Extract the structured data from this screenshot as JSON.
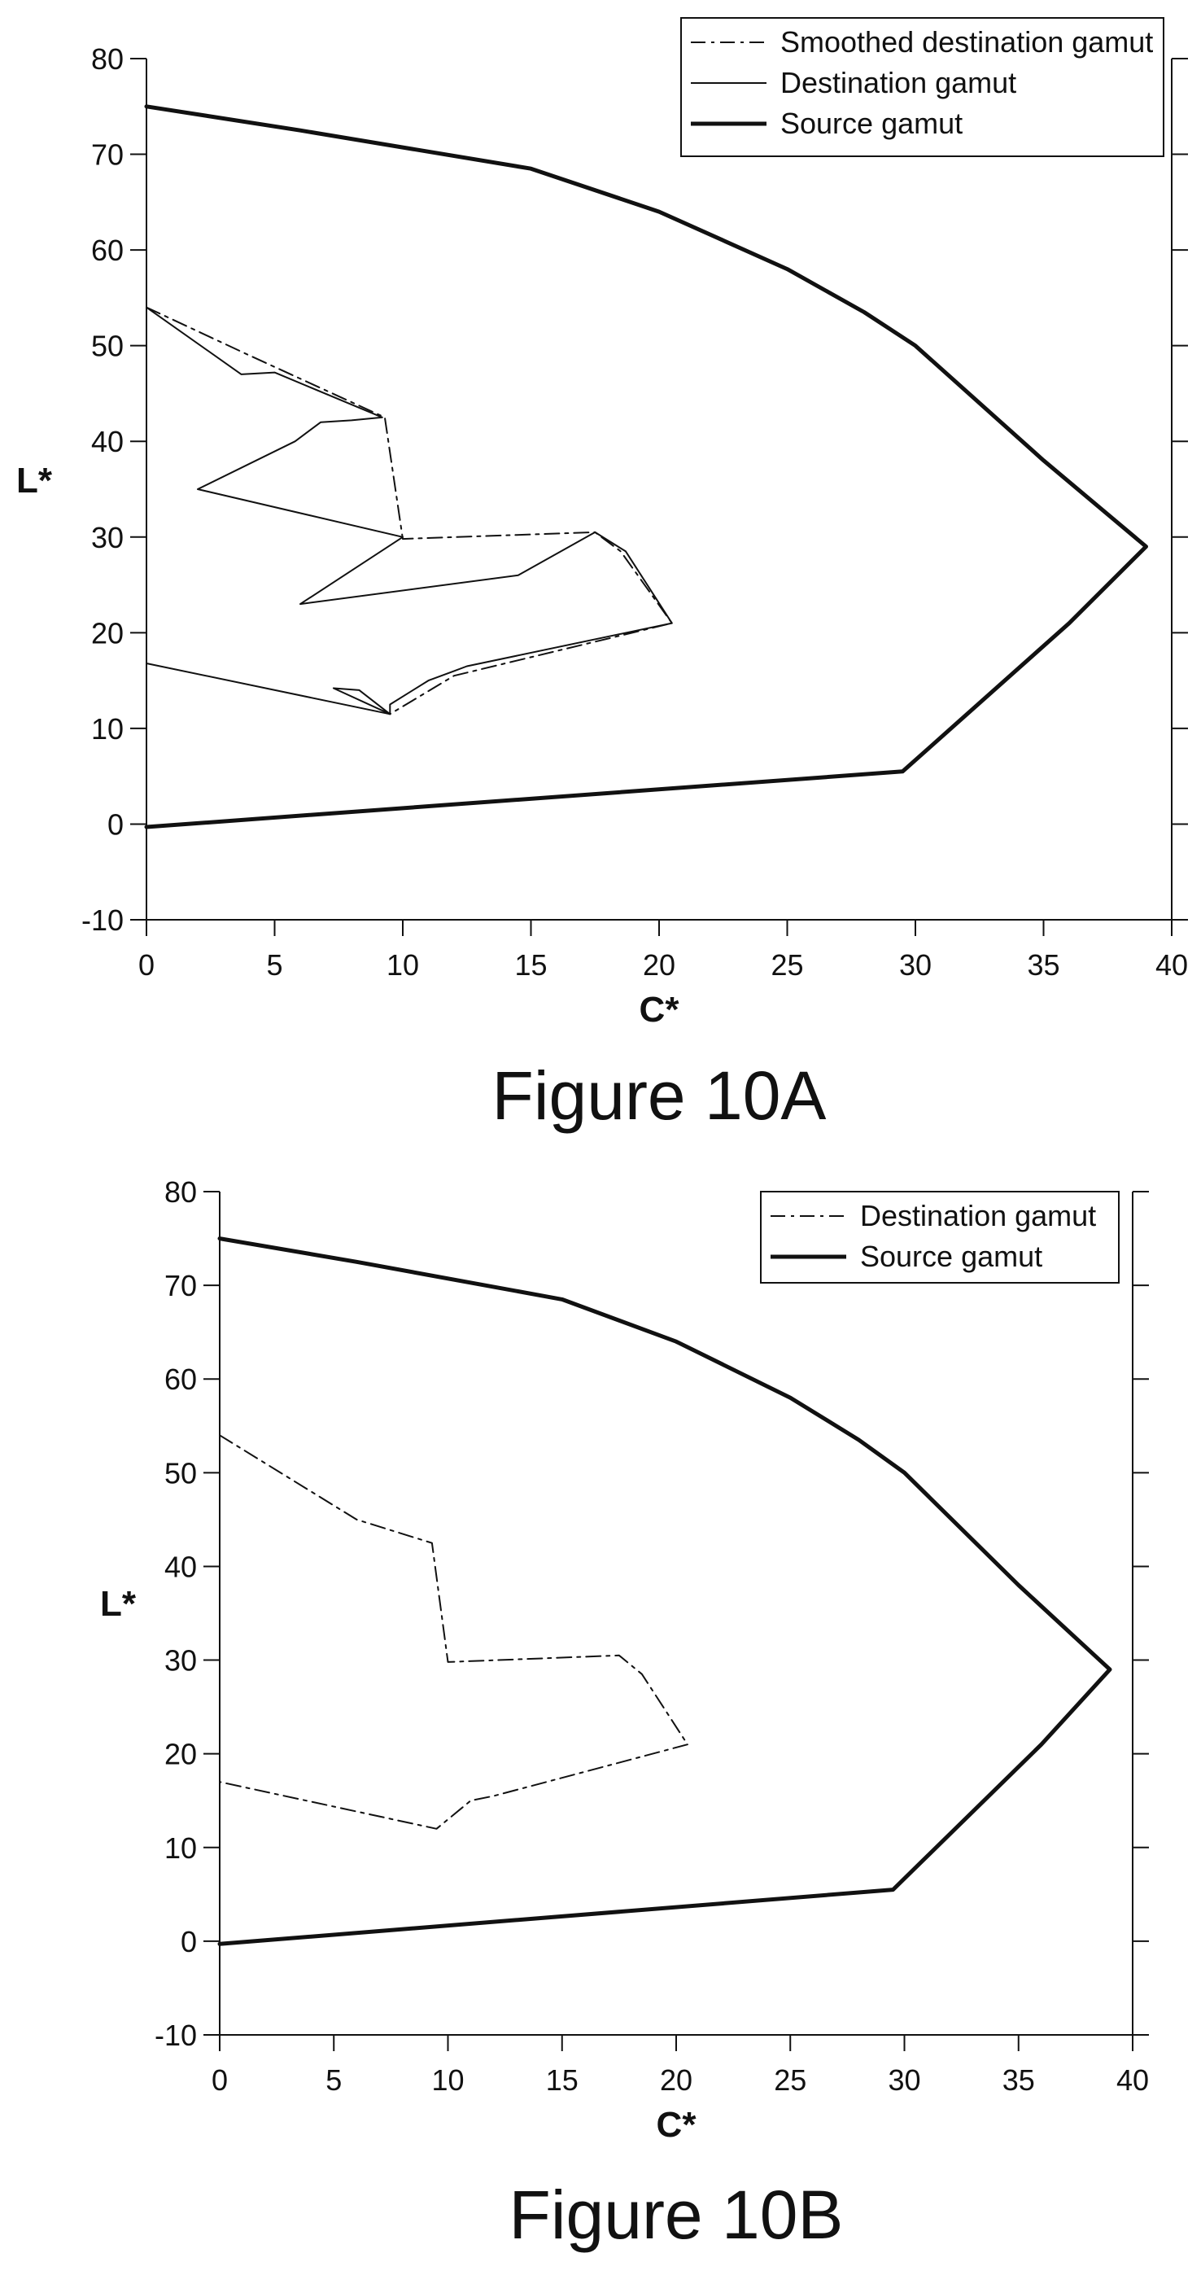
{
  "chart_data": [
    {
      "type": "line",
      "caption": "Figure 10A",
      "xlabel": "C*",
      "ylabel": "L*",
      "xlim": [
        0,
        40
      ],
      "ylim": [
        -10,
        80
      ],
      "xticks": [
        0,
        5,
        10,
        15,
        20,
        25,
        30,
        35,
        40
      ],
      "yticks": [
        -10,
        0,
        10,
        20,
        30,
        40,
        50,
        60,
        70,
        80
      ],
      "legend_position": "top-right",
      "series": [
        {
          "name": "Smoothed destination gamut",
          "style": "dashdot",
          "width": 2,
          "points": [
            [
              0,
              54
            ],
            [
              4,
              49
            ],
            [
              9.3,
              42.5
            ],
            [
              10,
              29.8
            ],
            [
              17.5,
              30.5
            ],
            [
              18.5,
              28.5
            ],
            [
              20.5,
              21
            ],
            [
              12,
              15.5
            ],
            [
              9.5,
              11.5
            ]
          ]
        },
        {
          "name": "Destination gamut",
          "style": "solid",
          "width": 2,
          "points": [
            [
              0,
              54
            ],
            [
              3.7,
              47
            ],
            [
              5,
              47.2
            ],
            [
              9.2,
              42.5
            ],
            [
              8,
              42.2
            ],
            [
              6.8,
              42
            ],
            [
              5.8,
              40
            ],
            [
              2,
              35
            ],
            [
              10,
              30
            ],
            [
              6,
              23
            ],
            [
              14.5,
              26
            ],
            [
              17.5,
              30.5
            ],
            [
              18.7,
              28.5
            ],
            [
              20.5,
              21
            ],
            [
              12.5,
              16.5
            ],
            [
              12,
              16
            ],
            [
              11,
              15
            ],
            [
              9.5,
              12.5
            ],
            [
              9.5,
              11.5
            ],
            [
              0,
              16.8
            ]
          ]
        },
        {
          "name": "Source gamut",
          "style": "solid",
          "width": 5,
          "points": [
            [
              0,
              75
            ],
            [
              6,
              72.5
            ],
            [
              15,
              68.5
            ],
            [
              20,
              64
            ],
            [
              25,
              58
            ],
            [
              28,
              53.5
            ],
            [
              30,
              50
            ],
            [
              35,
              38
            ],
            [
              39,
              29
            ],
            [
              36,
              21
            ],
            [
              29.5,
              5.5
            ],
            [
              0,
              -0.3
            ]
          ]
        },
        {
          "name": "",
          "style": "solid",
          "width": 2,
          "points": [
            [
              7.3,
              14.2
            ],
            [
              8.3,
              14
            ],
            [
              9.5,
              11.5
            ],
            [
              7.3,
              14.2
            ]
          ]
        }
      ]
    },
    {
      "type": "line",
      "caption": "Figure 10B",
      "xlabel": "C*",
      "ylabel": "L*",
      "xlim": [
        0,
        40
      ],
      "ylim": [
        -10,
        80
      ],
      "xticks": [
        0,
        5,
        10,
        15,
        20,
        25,
        30,
        35,
        40
      ],
      "yticks": [
        -10,
        0,
        10,
        20,
        30,
        40,
        50,
        60,
        70,
        80
      ],
      "legend_position": "top-right",
      "series": [
        {
          "name": "Destination gamut",
          "style": "dashdot",
          "width": 2,
          "points": [
            [
              0,
              54
            ],
            [
              6,
              45
            ],
            [
              9.3,
              42.5
            ],
            [
              10,
              29.8
            ],
            [
              17.5,
              30.5
            ],
            [
              18.5,
              28.5
            ],
            [
              20.5,
              21
            ],
            [
              12,
              15.5
            ],
            [
              11,
              15
            ],
            [
              9.5,
              12
            ],
            [
              0,
              17
            ]
          ]
        },
        {
          "name": "Source gamut",
          "style": "solid",
          "width": 5,
          "points": [
            [
              0,
              75
            ],
            [
              6,
              72.5
            ],
            [
              15,
              68.5
            ],
            [
              20,
              64
            ],
            [
              25,
              58
            ],
            [
              28,
              53.5
            ],
            [
              30,
              50
            ],
            [
              35,
              38
            ],
            [
              39,
              29
            ],
            [
              36,
              21
            ],
            [
              29.5,
              5.5
            ],
            [
              0,
              -0.3
            ]
          ]
        }
      ]
    }
  ]
}
